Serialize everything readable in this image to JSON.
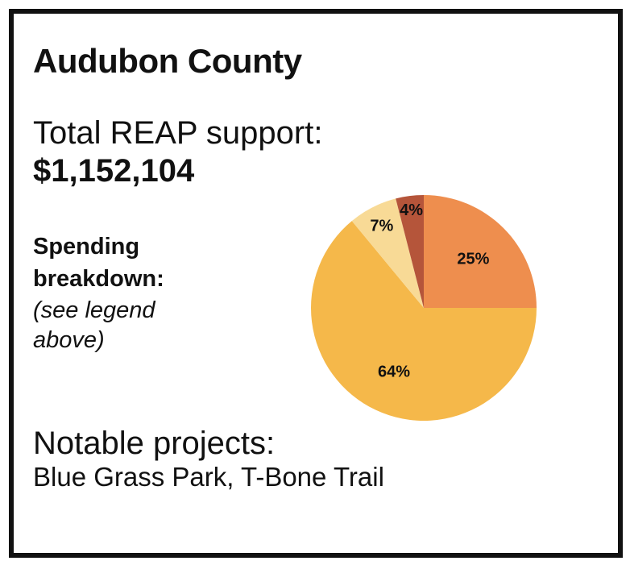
{
  "header": {
    "title": "Audubon County"
  },
  "support": {
    "label": "Total REAP support:",
    "value": "$1,152,104"
  },
  "spending": {
    "label": "Spending breakdown:",
    "note": "(see legend above)"
  },
  "notable": {
    "label": "Notable projects:",
    "value": "Blue Grass Park, T-Bone Trail"
  },
  "chart_data": {
    "type": "pie",
    "title": "",
    "slices": [
      {
        "label": "25%",
        "value": 25,
        "color": "#EE8E4E"
      },
      {
        "label": "64%",
        "value": 64,
        "color": "#F5B84A"
      },
      {
        "label": "7%",
        "value": 7,
        "color": "#F8DA96"
      },
      {
        "label": "4%",
        "value": 4,
        "color": "#B5553A"
      }
    ],
    "start": "12 o'clock",
    "direction": "clockwise",
    "legend": "none"
  }
}
